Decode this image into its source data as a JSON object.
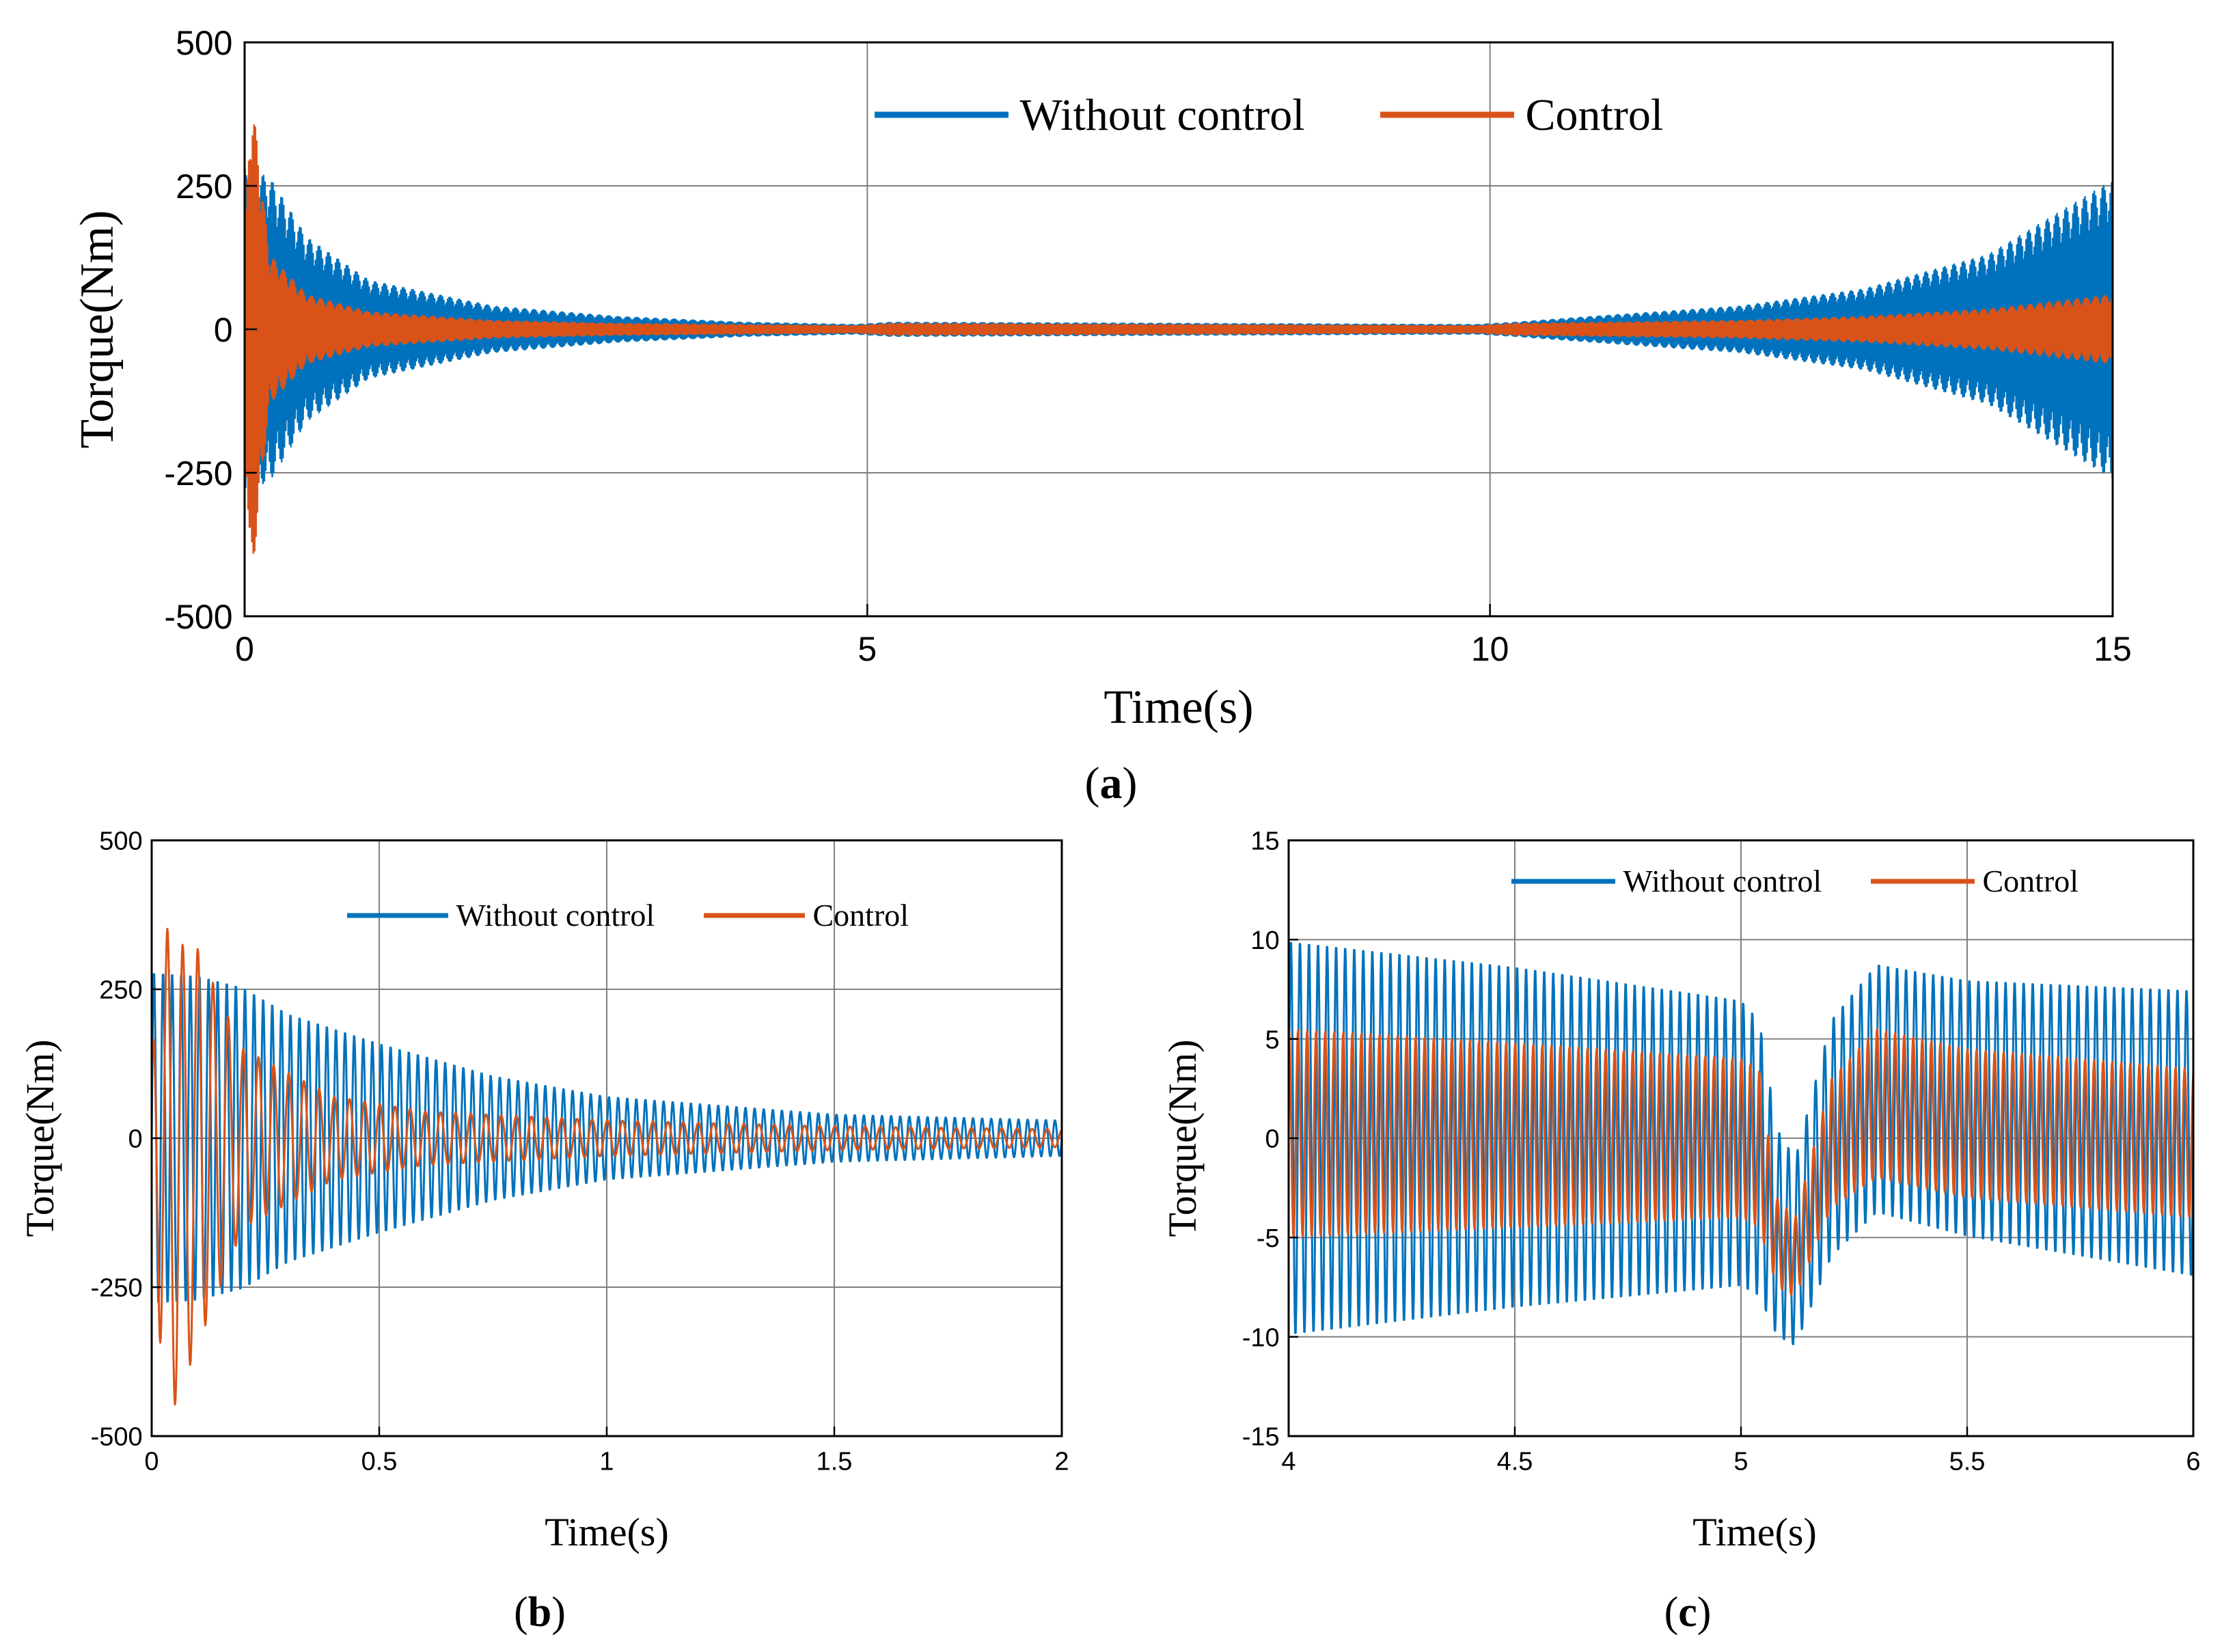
{
  "colors": {
    "without_control": "#0072BD",
    "control": "#D95319",
    "grid": "#808080",
    "axis": "#000000"
  },
  "panel_labels": {
    "a": "a",
    "b": "b",
    "c": "c"
  },
  "chart_data": [
    {
      "id": "a",
      "type": "line",
      "xlabel": "Time(s)",
      "ylabel": "Torque(Nm)",
      "xlim": [
        0,
        15
      ],
      "ylim": [
        -500,
        500
      ],
      "xticks": [
        0,
        5,
        10,
        15
      ],
      "yticks": [
        -500,
        -250,
        0,
        250,
        500
      ],
      "grid": true,
      "legend": {
        "placement": "top-right",
        "orientation": "horizontal"
      },
      "series": [
        {
          "name": "Without control",
          "color": "#0072BD",
          "envelope": {
            "x": [
              0,
              0.2,
              0.5,
              1,
              2,
              3,
              4,
              4.9,
              5.2,
              9.9,
              10.2,
              11,
              12,
              13,
              14,
              15
            ],
            "upper": [
              280,
              265,
              160,
              85,
              40,
              22,
              12,
              8,
              12,
              8,
              12,
              25,
              40,
              70,
              130,
              260
            ],
            "lower": [
              -280,
              -265,
              -160,
              -85,
              -40,
              -22,
              -12,
              -8,
              -12,
              -8,
              -12,
              -25,
              -40,
              -70,
              -130,
              -260
            ]
          }
        },
        {
          "name": "Control",
          "color": "#D95319",
          "envelope": {
            "x": [
              0,
              0.05,
              0.1,
              0.2,
              0.5,
              1,
              2,
              3,
              4.9,
              5.2,
              9.9,
              10.2,
              12,
              13,
              14,
              15
            ],
            "upper": [
              150,
              410,
              330,
              130,
              60,
              30,
              15,
              10,
              6,
              10,
              6,
              10,
              15,
              22,
              35,
              60
            ],
            "lower": [
              -150,
              -470,
              -340,
              -130,
              -60,
              -30,
              -15,
              -10,
              -6,
              -10,
              -6,
              -10,
              -15,
              -22,
              -35,
              -60
            ]
          }
        }
      ]
    },
    {
      "id": "b",
      "type": "line",
      "xlabel": "Time(s)",
      "ylabel": "Torque(Nm)",
      "xlim": [
        0,
        2
      ],
      "ylim": [
        -500,
        500
      ],
      "xticks": [
        0,
        0.5,
        1,
        1.5,
        2
      ],
      "yticks": [
        -500,
        -250,
        0,
        250,
        500
      ],
      "grid": true,
      "legend": {
        "placement": "top-right",
        "orientation": "horizontal"
      },
      "series": [
        {
          "name": "Without control",
          "color": "#0072BD",
          "oscillation_hz": 50,
          "envelope": {
            "x": [
              0,
              0.1,
              0.2,
              0.3,
              0.5,
              0.75,
              1,
              1.5,
              2
            ],
            "upper": [
              280,
              275,
              255,
              210,
              160,
              105,
              70,
              40,
              30
            ],
            "lower": [
              -280,
              -275,
              -255,
              -210,
              -160,
              -105,
              -70,
              -40,
              -30
            ]
          }
        },
        {
          "name": "Control",
          "color": "#D95319",
          "oscillation_hz": 30,
          "envelope": {
            "x": [
              0,
              0.02,
              0.04,
              0.1,
              0.2,
              0.4,
              0.6,
              1,
              1.5,
              2
            ],
            "upper": [
              130,
              410,
              330,
              320,
              150,
              70,
              45,
              30,
              20,
              15
            ],
            "lower": [
              -130,
              -360,
              -470,
              -350,
              -150,
              -70,
              -45,
              -30,
              -20,
              -15
            ]
          }
        }
      ]
    },
    {
      "id": "c",
      "type": "line",
      "xlabel": "Time(s)",
      "ylabel": "Torque(Nm)",
      "xlim": [
        4,
        6
      ],
      "ylim": [
        -15,
        15
      ],
      "xticks": [
        4,
        4.5,
        5,
        5.5,
        6
      ],
      "yticks": [
        -15,
        -10,
        -5,
        0,
        5,
        10,
        15
      ],
      "grid": true,
      "legend": {
        "placement": "top-right",
        "orientation": "horizontal"
      },
      "series": [
        {
          "name": "Without control",
          "color": "#0072BD",
          "oscillation_hz": 50,
          "envelope": {
            "x": [
              4,
              4.5,
              5,
              5.04,
              5.08,
              5.12,
              5.2,
              5.3,
              5.5,
              6
            ],
            "upper": [
              10,
              8.7,
              7,
              6,
              0.5,
              -1,
              6,
              8.8,
              8,
              7.5
            ],
            "lower": [
              -10,
              -8.6,
              -7.5,
              -8,
              -10,
              -10.5,
              -6,
              -3.8,
              -5,
              -7
            ]
          }
        },
        {
          "name": "Control",
          "color": "#D95319",
          "oscillation_hz": 50,
          "envelope": {
            "x": [
              4,
              4.5,
              5,
              5.04,
              5.08,
              5.12,
              5.2,
              5.3,
              5.5,
              6
            ],
            "upper": [
              5.5,
              4.8,
              4,
              3.5,
              -3,
              -4,
              3,
              5.5,
              4.5,
              3.5
            ],
            "lower": [
              -5,
              -4.5,
              -4,
              -4.5,
              -7.5,
              -8,
              -3.5,
              -2,
              -3,
              -4
            ]
          }
        }
      ]
    }
  ]
}
